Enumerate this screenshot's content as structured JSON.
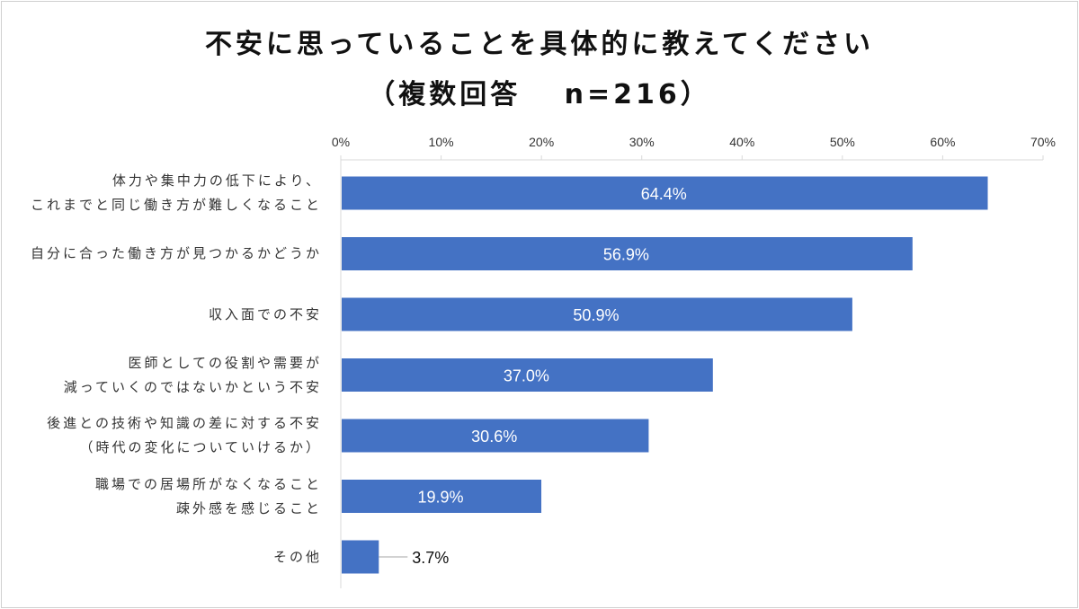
{
  "title": "不安に思っていることを具体的に教えてください",
  "subtitle": "（複数回答　 n=216）",
  "chart_data": {
    "type": "bar",
    "orientation": "horizontal",
    "title": "不安に思っていることを具体的に教えてください（複数回答　n=216）",
    "categories": [
      [
        "体力や集中力の低下により、",
        "これまでと同じ働き方が難しくなること"
      ],
      [
        "自分に合った働き方が見つかるかどうか"
      ],
      [
        "収入面での不安"
      ],
      [
        "医師としての役割や需要が",
        "減っていくのではないかという不安"
      ],
      [
        "後進との技術や知識の差に対する不安",
        "（時代の変化についていけるか）"
      ],
      [
        "職場での居場所がなくなること",
        "疎外感を感じること"
      ],
      [
        "その他"
      ]
    ],
    "values": [
      64.4,
      56.9,
      50.9,
      37.0,
      30.6,
      19.9,
      3.7
    ],
    "data_labels": [
      "64.4%",
      "56.9%",
      "50.9%",
      "37.0%",
      "30.6%",
      "19.9%",
      "3.7%"
    ],
    "xlim": [
      0,
      70
    ],
    "xticks": [
      "0%",
      "10%",
      "20%",
      "30%",
      "40%",
      "50%",
      "60%",
      "70%"
    ],
    "bar_color": "#4472c4",
    "grid": false
  }
}
